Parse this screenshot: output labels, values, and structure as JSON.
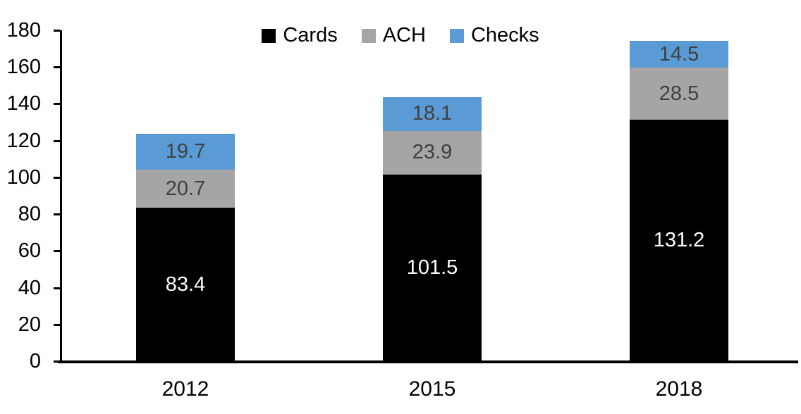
{
  "chart_data": {
    "type": "bar",
    "stacked": true,
    "title": "",
    "categories": [
      "2012",
      "2015",
      "2018"
    ],
    "series": [
      {
        "name": "Cards",
        "color": "#000000",
        "label_color": "#ffffff",
        "values": [
          83.4,
          101.5,
          131.2
        ]
      },
      {
        "name": "ACH",
        "color": "#a5a5a5",
        "label_color": "#404040",
        "values": [
          20.7,
          23.9,
          28.5
        ]
      },
      {
        "name": "Checks",
        "color": "#5b9bd5",
        "label_color": "#404040",
        "values": [
          19.7,
          18.1,
          14.5
        ]
      }
    ],
    "ylim": [
      0,
      180
    ],
    "ytick_step": 20,
    "ytick_labels": [
      "0",
      "20",
      "40",
      "60",
      "80",
      "100",
      "120",
      "140",
      "160",
      "180"
    ],
    "grid": false,
    "legend_position": "top-center",
    "axis_color": "#000000",
    "background": "#ffffff"
  }
}
